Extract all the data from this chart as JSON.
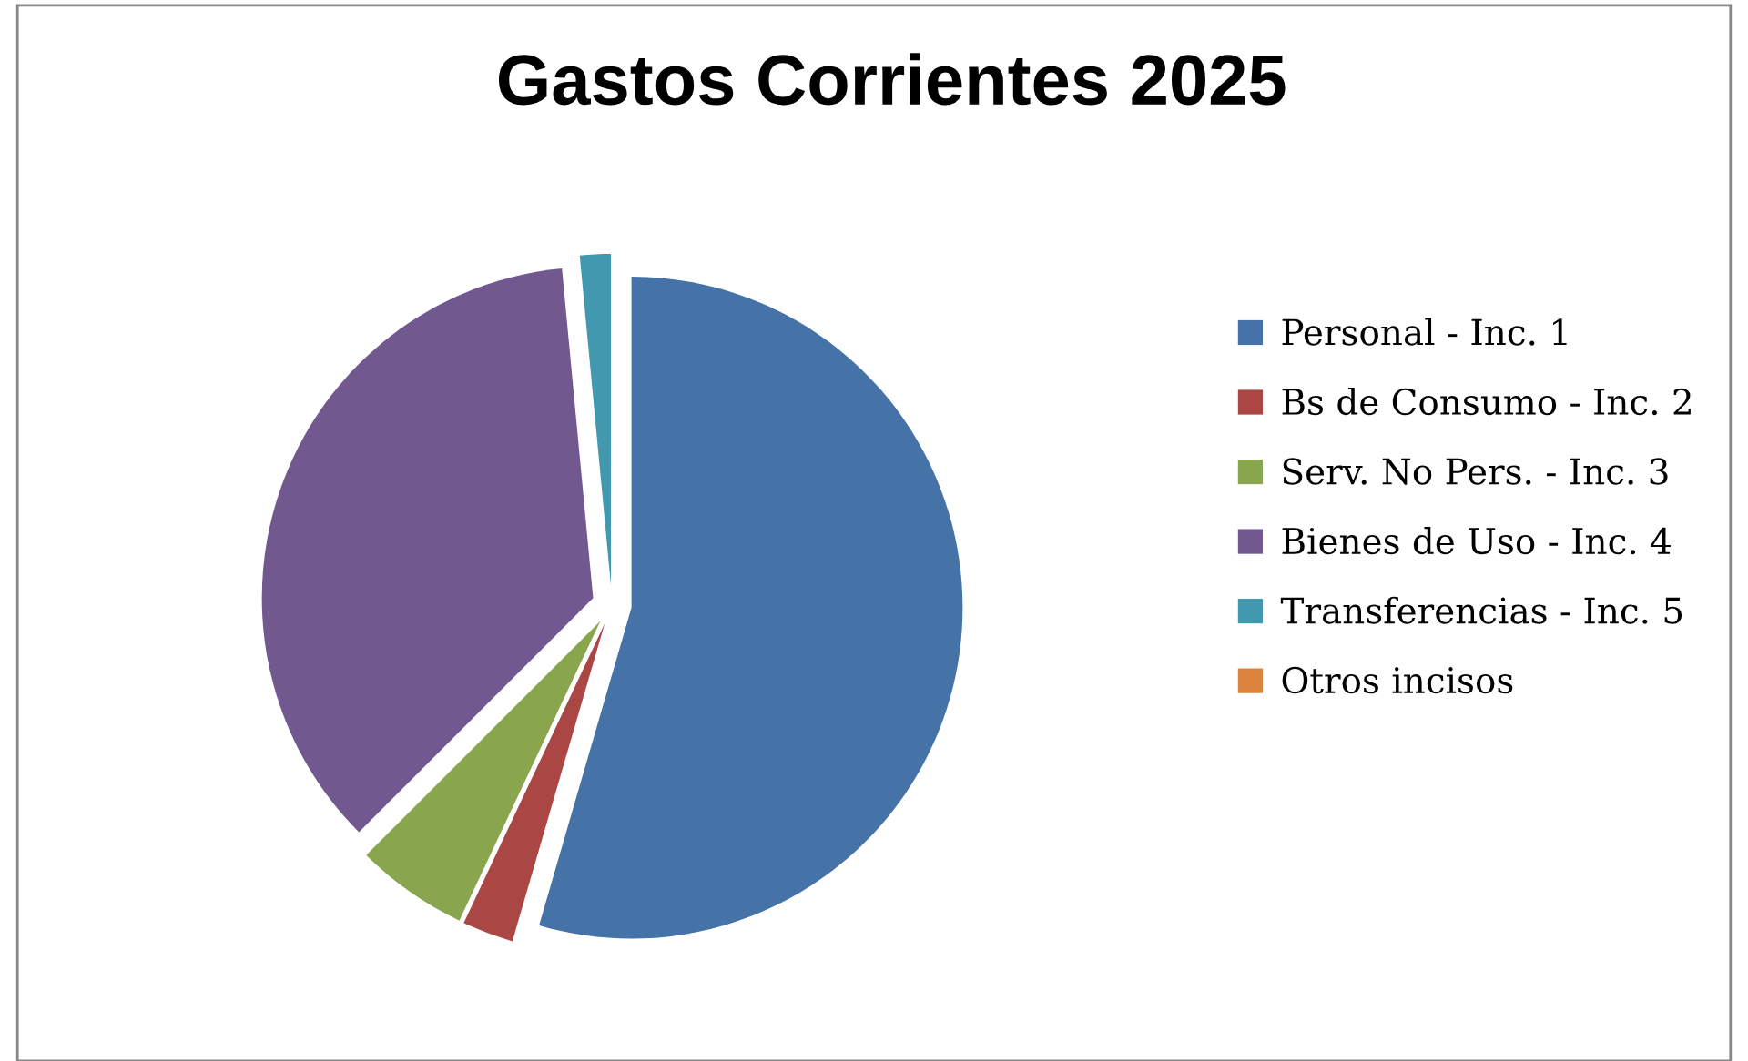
{
  "chart_data": {
    "type": "pie",
    "title": "Gastos Corrientes 2025",
    "categories": [
      "Personal - Inc. 1",
      "Bs de Consumo - Inc. 2",
      "Serv. No Pers. - Inc. 3",
      "Bienes de Uso - Inc. 4",
      "Transferencias - Inc. 5",
      "Otros incisos"
    ],
    "values": [
      54.5,
      2.5,
      5.5,
      36,
      1.5,
      0
    ],
    "colors": [
      "#4572a7",
      "#aa4643",
      "#89a54e",
      "#71588f",
      "#4198af",
      "#db843d"
    ],
    "legend": "right"
  }
}
